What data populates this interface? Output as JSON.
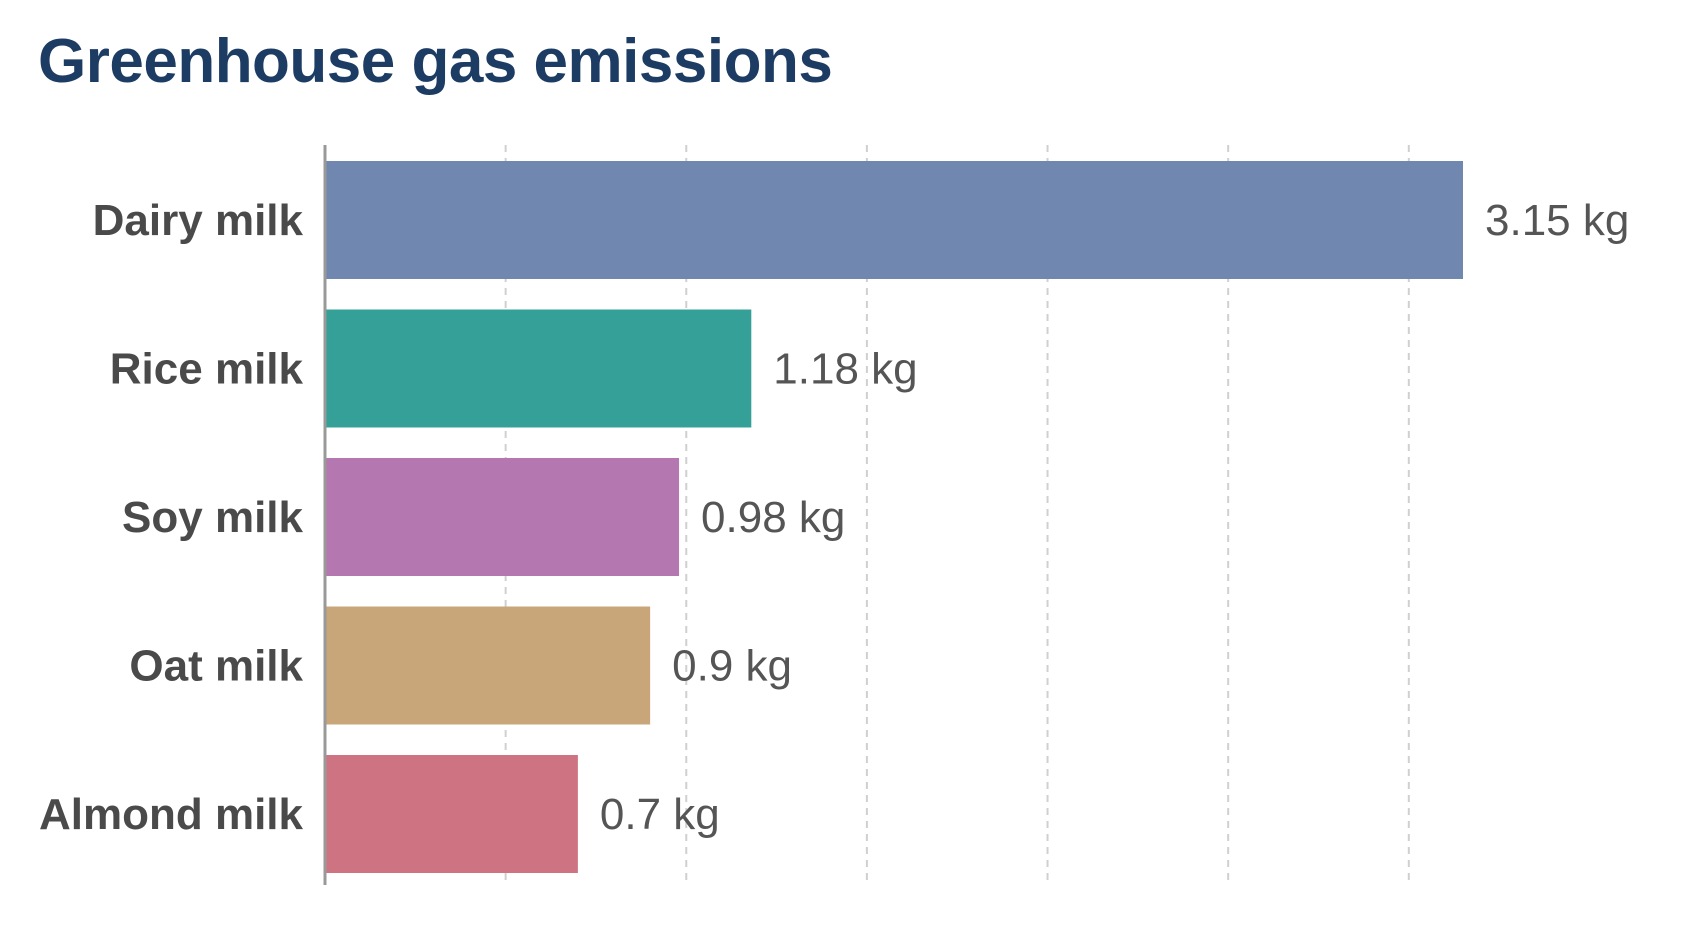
{
  "chart_data": {
    "type": "bar",
    "orientation": "horizontal",
    "title": "Greenhouse gas emissions",
    "xlabel": "",
    "ylabel": "",
    "categories": [
      "Dairy milk",
      "Rice milk",
      "Soy milk",
      "Oat milk",
      "Almond milk"
    ],
    "values": [
      3.15,
      1.18,
      0.98,
      0.9,
      0.7
    ],
    "value_labels": [
      "3.15 kg",
      "1.18 kg",
      "0.98 kg",
      "0.9 kg",
      "0.7 kg"
    ],
    "unit": "kg",
    "colors": [
      "#7087b0",
      "#34a098",
      "#b577b0",
      "#c8a67a",
      "#ce7382"
    ],
    "xlim": [
      0,
      3.5
    ],
    "grid": true,
    "gridlines_at": [
      0.5,
      1.0,
      1.5,
      2.0,
      2.5,
      3.0
    ],
    "legend": "none",
    "axis_color": "#999999",
    "title_color": "#1d3c63"
  }
}
